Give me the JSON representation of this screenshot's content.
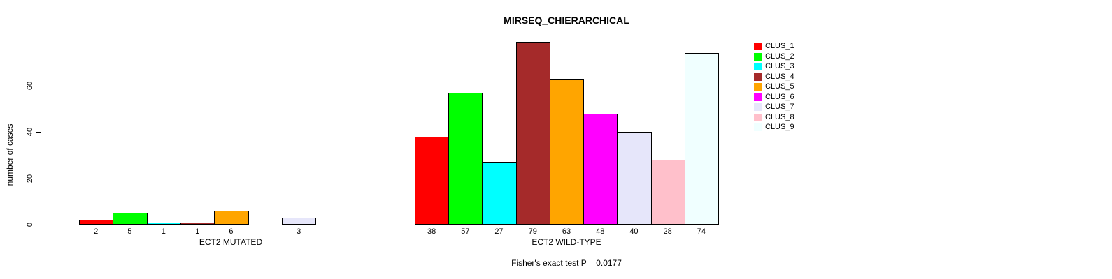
{
  "figure": {
    "title": "MIRSEQ_CHIERARCHICAL",
    "footer": "Fisher's exact test P = 0.0177",
    "background": "#FFFFFF"
  },
  "y_axis": {
    "label": "number of cases",
    "ticks": [
      0,
      20,
      40,
      60
    ]
  },
  "legend": {
    "position": "right",
    "items": [
      {
        "label": "CLUS_1",
        "color": "#FF0000"
      },
      {
        "label": "CLUS_2",
        "color": "#00FF00"
      },
      {
        "label": "CLUS_3",
        "color": "#00FFFF"
      },
      {
        "label": "CLUS_4",
        "color": "#A52A2A"
      },
      {
        "label": "CLUS_5",
        "color": "#FFA500"
      },
      {
        "label": "CLUS_6",
        "color": "#FF00FF"
      },
      {
        "label": "CLUS_7",
        "color": "#E6E6FA"
      },
      {
        "label": "CLUS_8",
        "color": "#FFC0CB"
      },
      {
        "label": "CLUS_9",
        "color": "#F0FFFF"
      }
    ]
  },
  "chart_data": [
    {
      "type": "bar",
      "panel": "left",
      "title": "",
      "xlabel": "ECT2 MUTATED",
      "ylabel": "number of cases",
      "categories": [
        "CLUS_1",
        "CLUS_2",
        "CLUS_3",
        "CLUS_4",
        "CLUS_5",
        "CLUS_6",
        "CLUS_7",
        "CLUS_8",
        "CLUS_9"
      ],
      "values": [
        2,
        5,
        1,
        1,
        6,
        0,
        3,
        0,
        0
      ],
      "colors": [
        "#FF0000",
        "#00FF00",
        "#00FFFF",
        "#A52A2A",
        "#FFA500",
        "#FF00FF",
        "#E6E6FA",
        "#FFC0CB",
        "#F0FFFF"
      ],
      "ylim": [
        0,
        79
      ],
      "grid": false,
      "note": "value labels shown under non-zero bars only"
    },
    {
      "type": "bar",
      "panel": "right",
      "title": "",
      "xlabel": "ECT2 WILD-TYPE",
      "ylabel": "number of cases",
      "categories": [
        "CLUS_1",
        "CLUS_2",
        "CLUS_3",
        "CLUS_4",
        "CLUS_5",
        "CLUS_6",
        "CLUS_7",
        "CLUS_8",
        "CLUS_9"
      ],
      "values": [
        38,
        57,
        27,
        79,
        63,
        48,
        40,
        28,
        74
      ],
      "colors": [
        "#FF0000",
        "#00FF00",
        "#00FFFF",
        "#A52A2A",
        "#FFA500",
        "#FF00FF",
        "#E6E6FA",
        "#FFC0CB",
        "#F0FFFF"
      ],
      "ylim": [
        0,
        79
      ],
      "grid": false,
      "note": "value labels shown under every bar"
    }
  ]
}
